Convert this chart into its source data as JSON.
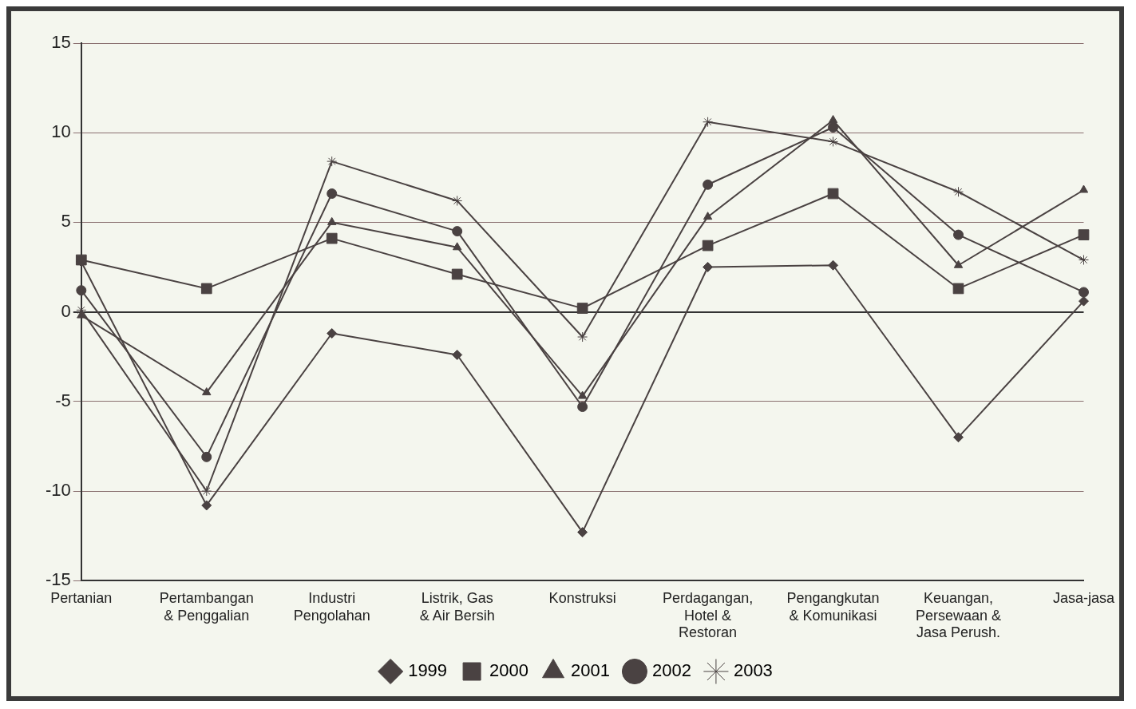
{
  "chart_data": {
    "type": "line",
    "categories": [
      "Pertanian",
      "Pertambangan & Penggalian",
      "Industri Pengolahan",
      "Listrik, Gas & Air Bersih",
      "Konstruksi",
      "Perdagangan, Hotel & Restoran",
      "Pengangkutan & Komunikasi",
      "Keuangan, Persewaan & Jasa Perush.",
      "Jasa-jasa"
    ],
    "series": [
      {
        "name": "1999",
        "color": "#4a4242",
        "marker": "diamond",
        "values": [
          2.8,
          -10.8,
          -1.2,
          -2.4,
          -12.3,
          2.5,
          2.6,
          -7.0,
          0.6
        ]
      },
      {
        "name": "2000",
        "color": "#4a4242",
        "marker": "square",
        "values": [
          2.9,
          1.3,
          4.1,
          2.1,
          0.2,
          3.7,
          6.6,
          1.3,
          4.3
        ]
      },
      {
        "name": "2001",
        "color": "#4a4242",
        "marker": "triangle",
        "values": [
          -0.2,
          -4.5,
          5.0,
          3.6,
          -4.7,
          5.3,
          10.7,
          2.6,
          6.8
        ]
      },
      {
        "name": "2002",
        "color": "#4a4242",
        "marker": "circle",
        "values": [
          1.2,
          -8.1,
          6.6,
          4.5,
          -5.3,
          7.1,
          10.3,
          4.3,
          1.1
        ]
      },
      {
        "name": "2003",
        "color": "#4a4242",
        "marker": "cross",
        "values": [
          0.1,
          -10.0,
          8.4,
          6.2,
          -1.4,
          10.6,
          9.5,
          6.7,
          2.9
        ]
      }
    ],
    "ylim": [
      -15,
      15
    ],
    "yticks": [
      -15,
      -10,
      -5,
      0,
      5,
      10,
      15
    ],
    "grid": "y",
    "legend": "bottom",
    "line_style": "solid"
  }
}
